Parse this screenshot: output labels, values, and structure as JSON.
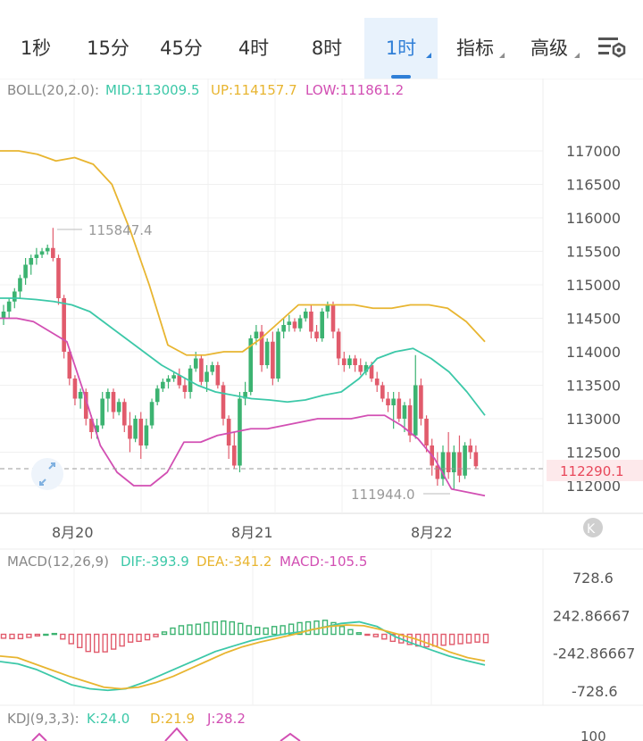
{
  "tabs": [
    {
      "label": "1秒",
      "active": false,
      "dropdown": false
    },
    {
      "label": "15分",
      "active": false,
      "dropdown": false
    },
    {
      "label": "45分",
      "active": false,
      "dropdown": false
    },
    {
      "label": "4时",
      "active": false,
      "dropdown": false
    },
    {
      "label": "8时",
      "active": false,
      "dropdown": false
    },
    {
      "label": "1时",
      "active": true,
      "dropdown": true
    },
    {
      "label": "指标",
      "active": false,
      "dropdown": true
    },
    {
      "label": "高级",
      "active": false,
      "dropdown": true
    }
  ],
  "settings_icon": "chart-settings-icon",
  "boll": {
    "name": "BOLL(20,2.0):",
    "mid": "MID:113009.5",
    "up": "UP:114157.7",
    "low": "LOW:111861.2"
  },
  "price_axis": [
    "117000",
    "116500",
    "116000",
    "115500",
    "115000",
    "114500",
    "114000",
    "113500",
    "113000",
    "112500",
    "112000"
  ],
  "current_price": "112290.1",
  "max_label": "115847.4",
  "min_label": "111944.0",
  "date_labels": [
    "8月20",
    "8月21",
    "8月22"
  ],
  "macd": {
    "name": "MACD(12,26,9)",
    "dif": "DIF:-393.9",
    "dea": "DEA:-341.2",
    "macd": "MACD:-105.5"
  },
  "macd_axis": [
    "728.6",
    "242.86667",
    "-242.86667",
    "-728.6"
  ],
  "kdj": {
    "name": "KDJ(9,3,3):",
    "k": "K:24.0",
    "d": "D:21.9",
    "j": "J:28.2"
  },
  "kdj_axis_top": "100",
  "colors": {
    "up": "#3cb371",
    "down": "#e15b6c",
    "mid": "#3cc8a8",
    "upper": "#e8b530",
    "lower": "#d24fb3",
    "accent": "#2f7fd7",
    "price_tag": "#e8475a"
  },
  "chart_data": {
    "type": "candlestick",
    "interval": "1时",
    "ohlc": [
      [
        114500,
        114700,
        114400,
        114600
      ],
      [
        114600,
        114800,
        114500,
        114750
      ],
      [
        114750,
        114950,
        114650,
        114900
      ],
      [
        114900,
        115150,
        114800,
        115100
      ],
      [
        115100,
        115400,
        115000,
        115300
      ],
      [
        115300,
        115450,
        115150,
        115400
      ],
      [
        115400,
        115550,
        115300,
        115450
      ],
      [
        115450,
        115550,
        115400,
        115500
      ],
      [
        115500,
        115600,
        115450,
        115550
      ],
      [
        115550,
        115850,
        115350,
        115400
      ],
      [
        115400,
        115450,
        114700,
        114800
      ],
      [
        114800,
        114850,
        113900,
        114000
      ],
      [
        114000,
        114050,
        113500,
        113600
      ],
      [
        113600,
        113650,
        113200,
        113300
      ],
      [
        113300,
        113450,
        113150,
        113400
      ],
      [
        113400,
        113450,
        112900,
        113000
      ],
      [
        113000,
        113050,
        112700,
        112800
      ],
      [
        112800,
        113000,
        112700,
        112900
      ],
      [
        112900,
        113400,
        112850,
        113300
      ],
      [
        113300,
        113450,
        113100,
        113400
      ],
      [
        113400,
        113450,
        113000,
        113100
      ],
      [
        113100,
        113300,
        113050,
        113250
      ],
      [
        113250,
        113300,
        112800,
        112900
      ],
      [
        112900,
        113100,
        112500,
        112700
      ],
      [
        112700,
        113050,
        112650,
        113000
      ],
      [
        113000,
        113100,
        112400,
        112600
      ],
      [
        112600,
        113000,
        112550,
        112900
      ],
      [
        112900,
        113300,
        112850,
        113250
      ],
      [
        113250,
        113500,
        113200,
        113450
      ],
      [
        113450,
        113600,
        113400,
        113550
      ],
      [
        113550,
        113650,
        113450,
        113600
      ],
      [
        113600,
        113700,
        113550,
        113650
      ],
      [
        113650,
        113750,
        113450,
        113500
      ],
      [
        113500,
        113600,
        113300,
        113400
      ],
      [
        113400,
        113800,
        113300,
        113750
      ],
      [
        113750,
        114000,
        113700,
        113900
      ],
      [
        113900,
        113950,
        113500,
        113550
      ],
      [
        113550,
        113800,
        113400,
        113700
      ],
      [
        113700,
        113850,
        113650,
        113800
      ],
      [
        113800,
        113850,
        113450,
        113500
      ],
      [
        113500,
        113550,
        112900,
        113000
      ],
      [
        113000,
        113050,
        112400,
        112600
      ],
      [
        112600,
        112800,
        112250,
        112300
      ],
      [
        112300,
        113400,
        112200,
        113300
      ],
      [
        113300,
        113550,
        113200,
        113400
      ],
      [
        113400,
        114250,
        113350,
        114200
      ],
      [
        114200,
        114400,
        114100,
        114300
      ],
      [
        114300,
        114400,
        113700,
        113800
      ],
      [
        113800,
        114200,
        113750,
        114150
      ],
      [
        114150,
        114300,
        113500,
        113600
      ],
      [
        113600,
        114350,
        113550,
        114300
      ],
      [
        114300,
        114500,
        114200,
        114400
      ],
      [
        114400,
        114550,
        114300,
        114450
      ],
      [
        114450,
        114500,
        114300,
        114350
      ],
      [
        114350,
        114550,
        114300,
        114500
      ],
      [
        114500,
        114650,
        114450,
        114600
      ],
      [
        114600,
        114700,
        114200,
        114300
      ],
      [
        114300,
        114400,
        114150,
        114200
      ],
      [
        114200,
        114650,
        114150,
        114600
      ],
      [
        114600,
        114750,
        114500,
        114700
      ],
      [
        114700,
        114750,
        114200,
        114300
      ],
      [
        114300,
        114350,
        113800,
        113900
      ],
      [
        113900,
        114000,
        113700,
        113800
      ],
      [
        113800,
        113950,
        113750,
        113900
      ],
      [
        113900,
        113950,
        113700,
        113800
      ],
      [
        113800,
        113900,
        113650,
        113700
      ],
      [
        113700,
        113850,
        113650,
        113800
      ],
      [
        113800,
        113850,
        113550,
        113600
      ],
      [
        113600,
        113700,
        113400,
        113500
      ],
      [
        113500,
        113550,
        113250,
        113300
      ],
      [
        113300,
        113400,
        113100,
        113200
      ],
      [
        113200,
        113400,
        112850,
        113300
      ],
      [
        113300,
        113400,
        112950,
        113000
      ],
      [
        113000,
        113250,
        112800,
        113200
      ],
      [
        113200,
        113300,
        112650,
        112750
      ],
      [
        112750,
        113950,
        112700,
        113500
      ],
      [
        113500,
        113600,
        112900,
        113000
      ],
      [
        113000,
        113050,
        112500,
        112600
      ],
      [
        112600,
        112700,
        112150,
        112300
      ],
      [
        112300,
        112500,
        112000,
        112100
      ],
      [
        112100,
        112600,
        112000,
        112500
      ],
      [
        112500,
        112800,
        112100,
        112200
      ],
      [
        112200,
        112600,
        111950,
        112500
      ],
      [
        112500,
        112750,
        112050,
        112150
      ],
      [
        112150,
        112650,
        112100,
        112600
      ],
      [
        112600,
        112700,
        112400,
        112500
      ],
      [
        112500,
        112600,
        112250,
        112290
      ]
    ],
    "boll_mid": [
      114800,
      114800,
      114780,
      114750,
      114700,
      114600,
      114400,
      114200,
      114000,
      113800,
      113650,
      113500,
      113400,
      113350,
      113300,
      113280,
      113250,
      113280,
      113350,
      113400,
      113600,
      113900,
      114000,
      114050,
      113900,
      113700,
      113400,
      113050
    ],
    "boll_up": [
      117000,
      117000,
      116950,
      116850,
      116900,
      116800,
      116500,
      115800,
      115000,
      114100,
      113950,
      113950,
      114000,
      114000,
      114200,
      114450,
      114700,
      114700,
      114700,
      114700,
      114650,
      114650,
      114700,
      114700,
      114650,
      114450,
      114150
    ],
    "boll_low": [
      114500,
      114500,
      114450,
      114300,
      114150,
      113400,
      112600,
      112200,
      112000,
      112000,
      112200,
      112650,
      112650,
      112750,
      112800,
      112850,
      112850,
      112900,
      112950,
      113000,
      113000,
      113000,
      113050,
      113050,
      112900,
      112700,
      112400,
      111950,
      111900,
      111850
    ],
    "macd_hist": [
      -50,
      -55,
      -55,
      -40,
      -20,
      0,
      10,
      -60,
      -120,
      -170,
      -220,
      -230,
      -225,
      -190,
      -150,
      -100,
      -90,
      -70,
      -30,
      30,
      80,
      110,
      120,
      130,
      150,
      160,
      170,
      160,
      140,
      110,
      90,
      80,
      100,
      110,
      130,
      150,
      160,
      170,
      180,
      150,
      100,
      60,
      20,
      -10,
      -30,
      -60,
      -90,
      -110,
      -130,
      -150,
      -160,
      -150,
      -140,
      -130,
      -120,
      -110,
      -100,
      -106
    ],
    "macd_dif": [
      -350,
      -380,
      -450,
      -550,
      -650,
      -700,
      -720,
      -700,
      -620,
      -520,
      -420,
      -320,
      -220,
      -150,
      -80,
      -30,
      10,
      40,
      90,
      140,
      160,
      100,
      -30,
      -120,
      -200,
      -280,
      -340,
      -394
    ],
    "macd_dea": [
      -280,
      -300,
      -380,
      -460,
      -540,
      -610,
      -680,
      -700,
      -680,
      -620,
      -540,
      -440,
      -340,
      -240,
      -160,
      -100,
      -50,
      0,
      60,
      100,
      120,
      110,
      60,
      0,
      -60,
      -140,
      -230,
      -300,
      -341
    ]
  }
}
